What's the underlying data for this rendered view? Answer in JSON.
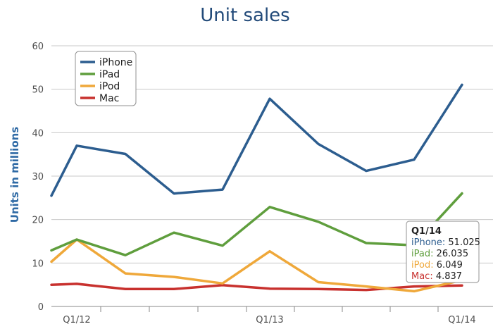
{
  "chart_data": {
    "type": "line",
    "title": "Unit sales",
    "xlabel": "",
    "ylabel": "Units in millions",
    "ylim": [
      0,
      60
    ],
    "yticks": [
      0,
      10,
      20,
      30,
      40,
      50,
      60
    ],
    "grid": true,
    "legend_position": "top-left",
    "x": [
      "Q4/11",
      "Q1/12",
      "Q2/12",
      "Q3/12",
      "Q4/12",
      "Q1/13",
      "Q2/13",
      "Q3/13",
      "Q4/13",
      "Q1/14"
    ],
    "x_tick_labels": [
      "Q1/12",
      "Q1/13",
      "Q1/14"
    ],
    "series": [
      {
        "name": "iPhone",
        "color": "#2c5d8f",
        "values": [
          25.5,
          37.0,
          35.1,
          26.0,
          26.9,
          47.8,
          37.4,
          31.2,
          33.8,
          51.025
        ]
      },
      {
        "name": "iPad",
        "color": "#5f9e3d",
        "values": [
          12.9,
          15.4,
          11.8,
          17.0,
          14.0,
          22.9,
          19.5,
          14.6,
          14.1,
          26.035
        ]
      },
      {
        "name": "iPod",
        "color": "#efa83a",
        "values": [
          10.3,
          15.4,
          7.6,
          6.8,
          5.3,
          12.7,
          5.6,
          4.6,
          3.5,
          6.049
        ]
      },
      {
        "name": "Mac",
        "color": "#c8312e",
        "values": [
          5.0,
          5.2,
          4.0,
          4.0,
          4.9,
          4.1,
          4.0,
          3.8,
          4.6,
          4.837
        ]
      }
    ],
    "tooltip": {
      "title": "Q1/14",
      "rows": [
        {
          "label": "iPhone",
          "value": "51.025",
          "color": "#2c5d8f"
        },
        {
          "label": "iPad",
          "value": "26.035",
          "color": "#5f9e3d"
        },
        {
          "label": "iPod",
          "value": "6.049",
          "color": "#efa83a"
        },
        {
          "label": "Mac",
          "value": "4.837",
          "color": "#c8312e"
        }
      ]
    }
  }
}
